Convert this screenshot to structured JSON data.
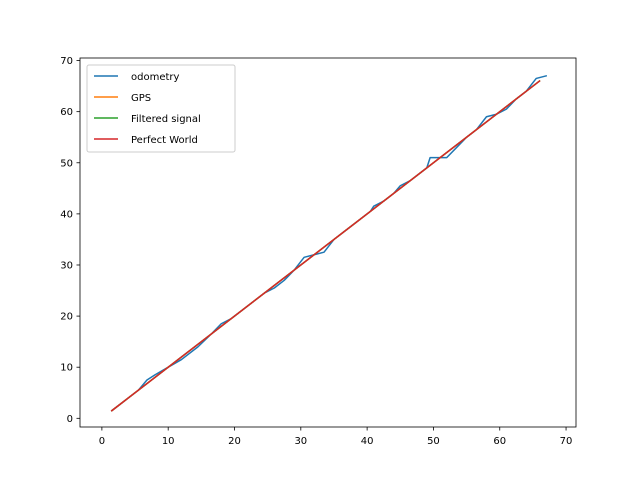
{
  "chart_data": {
    "type": "line",
    "title": "",
    "xlabel": "",
    "ylabel": "",
    "xlim": [
      -3.3,
      71.5
    ],
    "ylim": [
      -1.7,
      70.5
    ],
    "xticks": [
      0,
      10,
      20,
      30,
      40,
      50,
      60,
      70
    ],
    "yticks": [
      0,
      10,
      20,
      30,
      40,
      50,
      60,
      70
    ],
    "grid": false,
    "legend": "top-left",
    "series": [
      {
        "name": "odometry",
        "color": "#1f77b4",
        "x": [
          1.5,
          3.0,
          4.5,
          5.5,
          6.8,
          8.0,
          10.0,
          12.0,
          14.5,
          16.5,
          18.0,
          19.5,
          21.0,
          22.5,
          24.5,
          26.0,
          27.5,
          29.0,
          30.5,
          32.0,
          33.5,
          35.0,
          36.5,
          38.0,
          39.5,
          40.5,
          41.0,
          42.5,
          44.0,
          45.0,
          46.5,
          48.0,
          49.0,
          49.5,
          51.0,
          52.0,
          53.5,
          55.0,
          56.5,
          58.0,
          59.5,
          61.0,
          62.5,
          64.0,
          65.5,
          67.0
        ],
        "y": [
          1.5,
          3.0,
          4.5,
          5.5,
          7.5,
          8.5,
          10.0,
          11.5,
          14.0,
          16.5,
          18.5,
          19.5,
          21.0,
          22.5,
          24.5,
          25.5,
          27.0,
          29.0,
          31.5,
          32.0,
          32.5,
          35.0,
          36.5,
          38.0,
          39.5,
          40.5,
          41.5,
          42.5,
          44.0,
          45.5,
          46.5,
          48.0,
          49.0,
          51.0,
          51.0,
          51.0,
          53.0,
          55.0,
          56.5,
          59.0,
          59.5,
          60.5,
          62.5,
          64.0,
          66.5,
          67.0
        ]
      },
      {
        "name": "GPS",
        "color": "#ff7f0e",
        "x": [
          1.5,
          66.0
        ],
        "y": [
          1.5,
          66.0
        ]
      },
      {
        "name": "Filtered signal",
        "color": "#2ca02c",
        "x": [
          1.5,
          66.0
        ],
        "y": [
          1.5,
          66.0
        ]
      },
      {
        "name": "Perfect World",
        "color": "#d62728",
        "x": [
          1.5,
          66.0
        ],
        "y": [
          1.5,
          66.0
        ]
      }
    ]
  }
}
